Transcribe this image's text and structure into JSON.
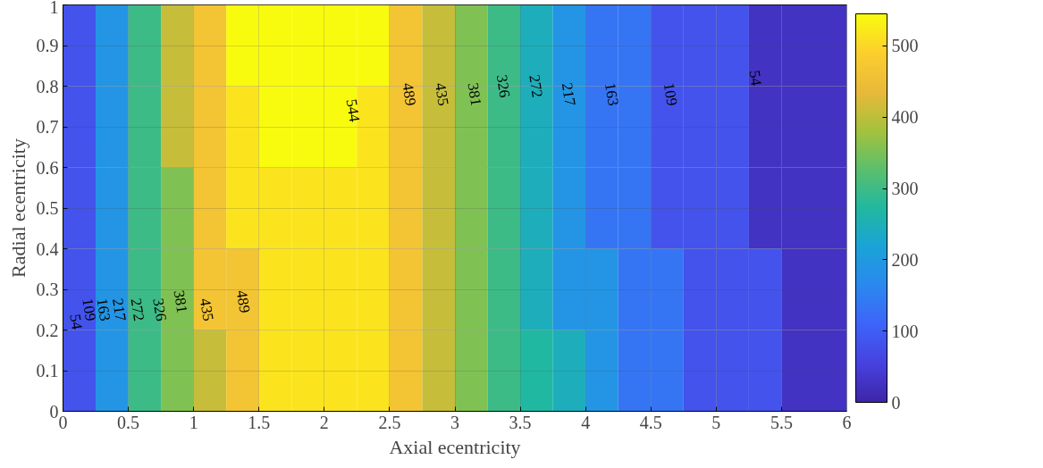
{
  "chart_data": {
    "type": "heatmap",
    "xlabel": "Axial ecentricity",
    "ylabel": "Radial ecentricity",
    "x": [
      0.125,
      0.375,
      0.625,
      0.875,
      1.125,
      1.375,
      1.625,
      1.875,
      2.125,
      2.375,
      2.625,
      2.875,
      3.125,
      3.375,
      3.625,
      3.875,
      4.125,
      4.375,
      4.625,
      4.875,
      5.125,
      5.375,
      5.625,
      5.875
    ],
    "y": [
      0.9,
      0.7,
      0.5,
      0.3,
      0.1
    ],
    "cells": [
      [
        82,
        190,
        299,
        408,
        462,
        544,
        544,
        544,
        544,
        544,
        462,
        408,
        354,
        299,
        245,
        190,
        136,
        136,
        82,
        82,
        82,
        27,
        27,
        27
      ],
      [
        82,
        190,
        299,
        408,
        462,
        517,
        544,
        544,
        544,
        517,
        462,
        408,
        354,
        299,
        245,
        190,
        136,
        136,
        82,
        82,
        82,
        27,
        27,
        27
      ],
      [
        82,
        190,
        299,
        354,
        462,
        517,
        517,
        517,
        517,
        517,
        462,
        408,
        354,
        299,
        245,
        190,
        136,
        136,
        82,
        82,
        82,
        27,
        27,
        27
      ],
      [
        82,
        190,
        299,
        354,
        462,
        462,
        517,
        517,
        517,
        517,
        462,
        408,
        354,
        299,
        245,
        190,
        190,
        136,
        136,
        82,
        82,
        82,
        27,
        27
      ],
      [
        82,
        190,
        299,
        354,
        408,
        462,
        517,
        517,
        517,
        517,
        462,
        408,
        354,
        299,
        272,
        245,
        190,
        136,
        136,
        82,
        82,
        82,
        27,
        27
      ]
    ],
    "xlim": [
      0,
      6
    ],
    "xticks": [
      0,
      0.5,
      1,
      1.5,
      2,
      2.5,
      3,
      3.5,
      4,
      4.5,
      5,
      5.5,
      6
    ],
    "ylim": [
      0,
      1
    ],
    "yticks": [
      0,
      0.1,
      0.2,
      0.3,
      0.4,
      0.5,
      0.6,
      0.7,
      0.8,
      0.9,
      1
    ],
    "clim": [
      0,
      545
    ],
    "cticks": [
      0,
      100,
      200,
      300,
      400,
      500
    ],
    "grid": true,
    "annotations": [
      "54",
      "109",
      "163",
      "217",
      "272",
      "326",
      "381",
      "435",
      "489",
      "544",
      "489",
      "435",
      "381",
      "326",
      "272",
      "217",
      "163",
      "109",
      "54"
    ]
  }
}
